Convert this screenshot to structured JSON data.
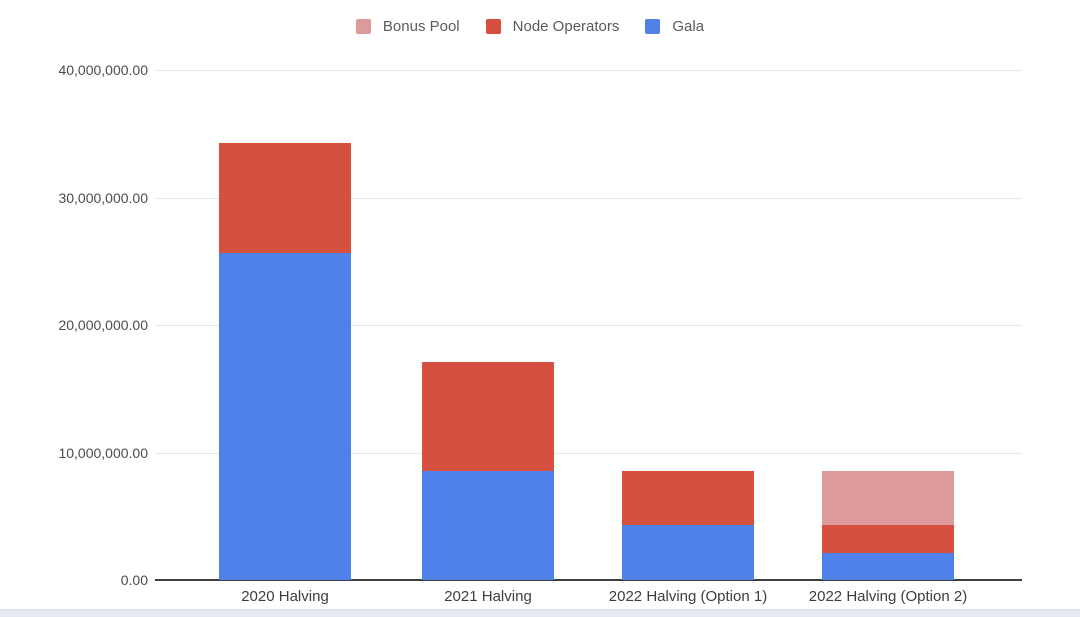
{
  "page": {
    "background": "#ffffff",
    "bottom_band_color": "#e5eaf1"
  },
  "chart_data": {
    "type": "bar",
    "stacked": true,
    "title": "",
    "categories": [
      "2020 Halving",
      "2021 Halving",
      "2022 Halving (Option 1)",
      "2022 Halving (Option 2)"
    ],
    "series": [
      {
        "name": "Gala",
        "color": "#4f81e8",
        "values": [
          25684932,
          8561644,
          4280822,
          2140411
        ]
      },
      {
        "name": "Node Operators",
        "color": "#d5503e",
        "values": [
          8561644,
          8561644,
          4280822,
          2140411
        ]
      },
      {
        "name": "Bonus Pool",
        "color": "#dc9a9a",
        "values": [
          0,
          0,
          0,
          4280822
        ]
      }
    ],
    "legend": {
      "position": "top",
      "items": [
        "Bonus Pool",
        "Node Operators",
        "Gala"
      ]
    },
    "y_axis": {
      "min": 0,
      "max": 40000000,
      "tick_interval": 10000000,
      "tick_labels": [
        "0.00",
        "10,000,000.00",
        "20,000,000.00",
        "30,000,000.00",
        "40,000,000.00"
      ],
      "gridlines": true,
      "gridline_color": "#e6e6e6",
      "baseline_color": "#3f3f3f"
    },
    "x_axis": {
      "labels": [
        "2020 Halving",
        "2021 Halving",
        "2022 Halving (Option 1)",
        "2022 Halving (Option 2)"
      ]
    }
  }
}
